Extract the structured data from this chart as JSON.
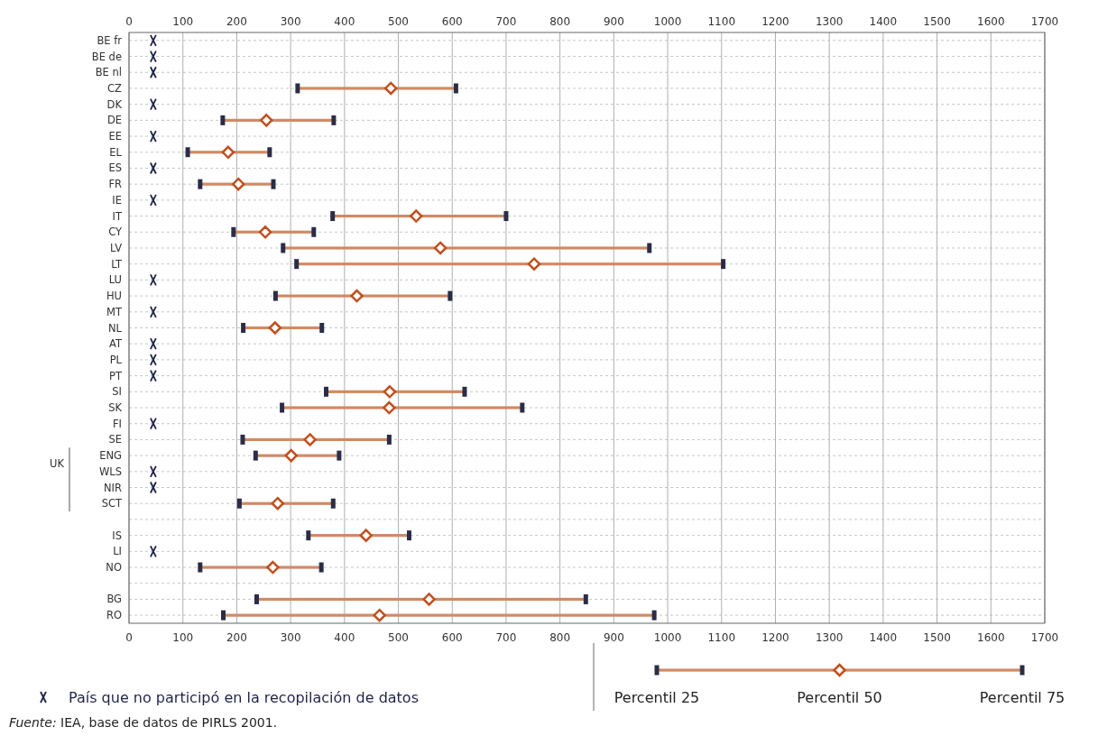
{
  "chart_data": {
    "type": "bar",
    "orientation": "horizontal",
    "categories": [
      "BE fr",
      "BE de",
      "BE nl",
      "CZ",
      "DK",
      "DE",
      "EE",
      "EL",
      "ES",
      "FR",
      "IE",
      "IT",
      "CY",
      "LV",
      "LT",
      "LU",
      "HU",
      "MT",
      "NL",
      "AT",
      "PL",
      "PT",
      "SI",
      "SK",
      "FI",
      "SE",
      "ENG",
      "WLS",
      "NIR",
      "SCT",
      null,
      "IS",
      "LI",
      "NO",
      null,
      "BG",
      "RO"
    ],
    "series": [
      {
        "color": "#d08a64",
        "base": [
          null,
          null,
          null,
          313,
          null,
          174,
          null,
          109,
          null,
          132,
          null,
          378,
          194,
          286,
          311,
          null,
          272,
          null,
          212,
          null,
          null,
          null,
          366,
          284,
          null,
          211,
          235,
          null,
          null,
          205,
          null,
          333,
          null,
          132,
          null,
          237,
          175
        ],
        "values": [
          null,
          null,
          null,
          294,
          null,
          206,
          null,
          152,
          null,
          136,
          null,
          322,
          149,
          680,
          792,
          null,
          324,
          null,
          146,
          null,
          null,
          null,
          257,
          446,
          null,
          272,
          155,
          null,
          null,
          174,
          null,
          187,
          null,
          225,
          null,
          611,
          800
        ]
      },
      {
        "type": "scatter",
        "name": "Percentil 25",
        "marker": "square",
        "color": "#2b2d45",
        "values": [
          null,
          null,
          null,
          313,
          null,
          174,
          null,
          109,
          null,
          132,
          null,
          378,
          194,
          286,
          311,
          null,
          272,
          null,
          212,
          null,
          null,
          null,
          366,
          284,
          null,
          211,
          235,
          null,
          null,
          205,
          null,
          333,
          null,
          132,
          null,
          237,
          175
        ]
      },
      {
        "type": "scatter",
        "name": "Percentil 50",
        "marker": "diamond",
        "color": "#c0501f",
        "values": [
          null,
          null,
          null,
          486,
          null,
          255,
          null,
          184,
          null,
          203,
          null,
          533,
          253,
          578,
          752,
          null,
          423,
          null,
          271,
          null,
          null,
          null,
          484,
          483,
          null,
          336,
          301,
          null,
          null,
          276,
          null,
          440,
          null,
          267,
          null,
          557,
          465
        ]
      },
      {
        "type": "scatter",
        "name": "Percentil 75",
        "marker": "square",
        "color": "#2b2d45",
        "values": [
          null,
          null,
          null,
          607,
          null,
          380,
          null,
          261,
          null,
          268,
          null,
          700,
          343,
          966,
          1103,
          null,
          596,
          null,
          358,
          null,
          null,
          null,
          623,
          730,
          null,
          483,
          390,
          null,
          null,
          379,
          null,
          520,
          null,
          357,
          null,
          848,
          975
        ]
      },
      {
        "type": "scatter",
        "name": "País que no participó en la recopilación de datos",
        "marker": "cross",
        "color": "#1f2347",
        "values": [
          45,
          45,
          45,
          null,
          45,
          null,
          45,
          null,
          45,
          null,
          45,
          null,
          null,
          null,
          null,
          45,
          null,
          45,
          null,
          45,
          45,
          45,
          null,
          null,
          45,
          null,
          null,
          45,
          45,
          null,
          null,
          null,
          45,
          null,
          null,
          null,
          null
        ]
      }
    ],
    "xlim": [
      0,
      1700
    ],
    "xticks": [
      0,
      100,
      200,
      300,
      400,
      500,
      600,
      700,
      800,
      900,
      1000,
      1100,
      1200,
      1300,
      1400,
      1500,
      1600,
      1700
    ],
    "x2lim": [
      0,
      1700
    ],
    "x2ticks": [
      0,
      100,
      200,
      300,
      400,
      500,
      600,
      700,
      800,
      900,
      1000,
      1100,
      1200,
      1300,
      1400,
      1500,
      1600,
      1700
    ],
    "grid": true,
    "legend": "bottom",
    "annotations": [
      "UK",
      "Fuente: IEA, base de datos de PIRLS 2001."
    ]
  }
}
